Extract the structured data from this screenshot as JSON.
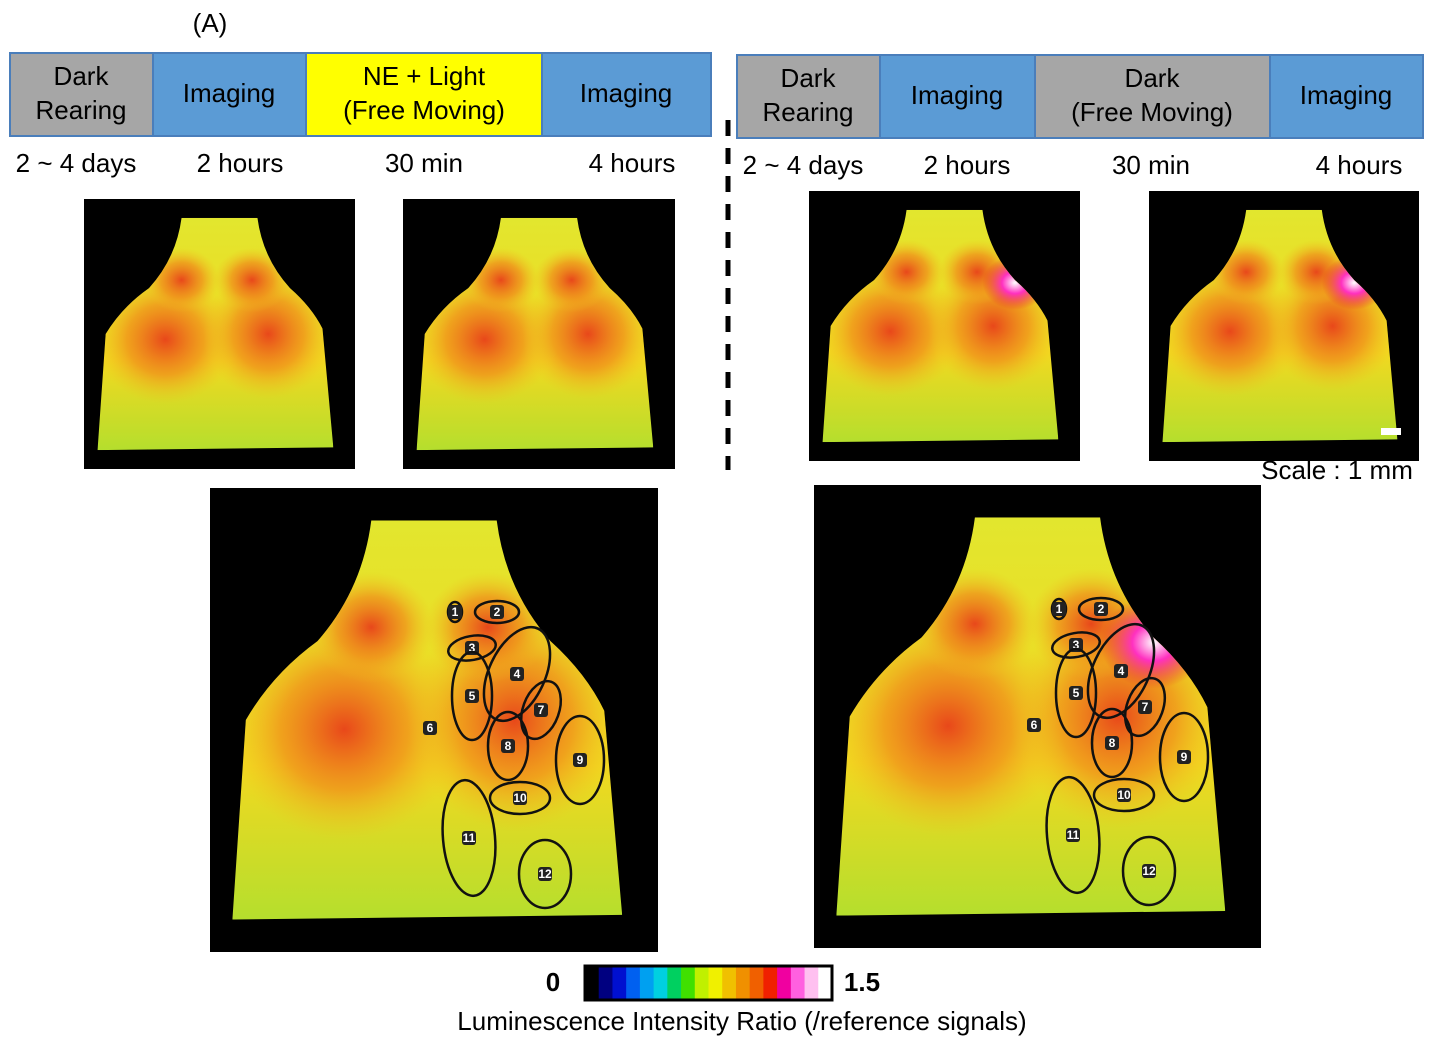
{
  "panel_label": "(A)",
  "left": {
    "boxes": [
      {
        "lines": [
          "Dark",
          "Rearing"
        ]
      },
      {
        "lines": [
          "Imaging"
        ]
      },
      {
        "lines": [
          "NE + Light",
          "(Free Moving)"
        ]
      },
      {
        "lines": [
          "Imaging"
        ]
      }
    ],
    "durations": [
      "2 ~ 4 days",
      "2 hours",
      "30 min",
      "4 hours"
    ]
  },
  "right": {
    "boxes": [
      {
        "lines": [
          "Dark",
          "Rearing"
        ]
      },
      {
        "lines": [
          "Imaging"
        ]
      },
      {
        "lines": [
          "Dark",
          "(Free Moving)"
        ]
      },
      {
        "lines": [
          "Imaging"
        ]
      }
    ],
    "durations": [
      "2 ~ 4 days",
      "2 hours",
      "30 min",
      "4 hours"
    ]
  },
  "scale_label": "Scale : 1 mm",
  "regions": [
    "1",
    "2",
    "3",
    "4",
    "5",
    "6",
    "7",
    "8",
    "9",
    "10",
    "11",
    "12"
  ],
  "colorbar": {
    "min_label": "0",
    "max_label": "1.5",
    "caption": "Luminescence Intensity Ratio (/reference signals)"
  }
}
